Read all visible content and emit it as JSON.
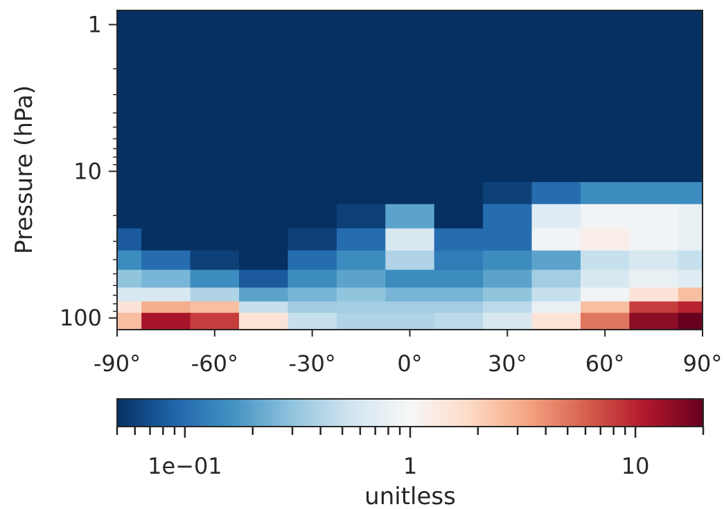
{
  "chart_data": {
    "type": "heatmap",
    "title": "",
    "xlabel": "",
    "ylabel": "Pressure (hPa)",
    "x_range": [
      -90,
      90
    ],
    "y_range": [
      0.8,
      120
    ],
    "y_scale": "log",
    "y_inverted": true,
    "x_ticks": [
      -90,
      -60,
      -30,
      0,
      30,
      60,
      90
    ],
    "x_tick_labels": [
      "-90°",
      "-60°",
      "-30°",
      "0°",
      "30°",
      "60°",
      "90°"
    ],
    "y_ticks": [
      1,
      10,
      100
    ],
    "y_tick_labels": [
      "1",
      "10",
      "100"
    ],
    "grid": false,
    "colorbar": {
      "label": "unitless",
      "scale": "log",
      "range": [
        0.05,
        20
      ],
      "ticks": [
        0.1,
        1,
        10
      ],
      "tick_labels": [
        "1e−01",
        "1",
        "10"
      ],
      "colormap": "RdBu_r",
      "colors": [
        "#053061",
        "#2166ac",
        "#4393c3",
        "#92c5de",
        "#d1e5f0",
        "#f7f7f7",
        "#fddbc7",
        "#f4a582",
        "#d6604d",
        "#b2182b",
        "#67001f"
      ]
    },
    "x": [
      -90,
      -75,
      -60,
      -45,
      -30,
      -15,
      0,
      15,
      30,
      45,
      60,
      75,
      90
    ],
    "pressure_levels": [
      10,
      14,
      20,
      30,
      40,
      55,
      70,
      85,
      100
    ],
    "values": [
      [
        0.03,
        0.03,
        0.03,
        0.03,
        0.03,
        0.03,
        0.03,
        0.03,
        0.03,
        0.03,
        0.03,
        0.04,
        0.05
      ],
      [
        0.03,
        0.03,
        0.03,
        0.03,
        0.03,
        0.03,
        0.05,
        0.03,
        0.06,
        0.1,
        0.15,
        0.15,
        0.15
      ],
      [
        0.03,
        0.03,
        0.03,
        0.03,
        0.03,
        0.06,
        0.2,
        0.05,
        0.1,
        0.7,
        0.9,
        0.9,
        0.8
      ],
      [
        0.08,
        0.03,
        0.03,
        0.03,
        0.06,
        0.1,
        0.6,
        0.1,
        0.1,
        0.9,
        1.2,
        0.9,
        0.8
      ],
      [
        0.15,
        0.1,
        0.06,
        0.04,
        0.1,
        0.15,
        0.4,
        0.12,
        0.15,
        0.2,
        0.5,
        0.6,
        0.5
      ],
      [
        0.3,
        0.25,
        0.15,
        0.08,
        0.15,
        0.2,
        0.15,
        0.15,
        0.2,
        0.35,
        0.6,
        0.8,
        0.7
      ],
      [
        0.6,
        0.6,
        0.4,
        0.2,
        0.25,
        0.3,
        0.25,
        0.25,
        0.3,
        0.5,
        0.9,
        1.5,
        2.5
      ],
      [
        1.5,
        3,
        2.5,
        0.5,
        0.35,
        0.35,
        0.35,
        0.35,
        0.45,
        0.8,
        2.5,
        8,
        10
      ],
      [
        2.5,
        12,
        8,
        1.5,
        0.5,
        0.4,
        0.4,
        0.45,
        0.6,
        1.5,
        5,
        15,
        20
      ]
    ]
  }
}
